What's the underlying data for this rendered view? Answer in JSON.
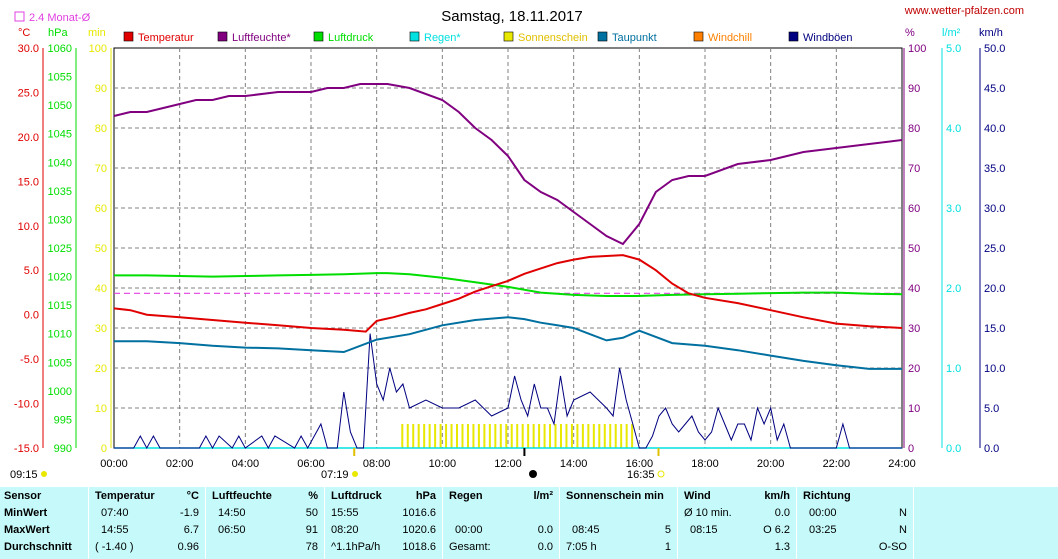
{
  "header": {
    "title": "Samstag, 18.11.2017",
    "site": "www.wetter-pfalzen.com",
    "avg_legend": "2.4 Monat-Ø"
  },
  "axes": {
    "temp_unit": "°C",
    "pressure_unit": "hPa",
    "minutes_unit": "min",
    "percent_unit": "%",
    "rain_unit": "l/m²",
    "wind_unit": "km/h",
    "temp_ticks": [
      "30.0",
      "25.0",
      "20.0",
      "15.0",
      "10.0",
      "5.0",
      "0.0",
      "-5.0",
      "-10.0",
      "-15.0"
    ],
    "pressure_ticks": [
      "1060",
      "1055",
      "1050",
      "1045",
      "1040",
      "1035",
      "1030",
      "1025",
      "1020",
      "1015",
      "1010",
      "1005",
      "1000",
      "995",
      "990"
    ],
    "minutes_ticks": [
      "100",
      "90",
      "80",
      "70",
      "60",
      "50",
      "40",
      "30",
      "20",
      "10",
      "0"
    ],
    "percent_ticks": [
      "100",
      "90",
      "80",
      "70",
      "60",
      "50",
      "40",
      "30",
      "20",
      "10",
      "0"
    ],
    "rain_ticks": [
      "5.0",
      "4.0",
      "3.0",
      "2.0",
      "1.0",
      "0.0"
    ],
    "wind_ticks": [
      "50.0",
      "45.0",
      "40.0",
      "35.0",
      "30.0",
      "25.0",
      "20.0",
      "15.0",
      "10.0",
      "5.0",
      "0.0"
    ],
    "time_ticks": [
      "00:00",
      "02:00",
      "04:00",
      "06:00",
      "08:00",
      "10:00",
      "12:00",
      "14:00",
      "16:00",
      "18:00",
      "20:00",
      "22:00",
      "24:00"
    ]
  },
  "sun": {
    "moon_time": "09:15",
    "sunrise": "07:19",
    "sunset": "16:35"
  },
  "colors": {
    "temperature": "#e00000",
    "humidity": "#800080",
    "pressure": "#00dd00",
    "rain": "#00e0e0",
    "sunshine": "#e8e800",
    "dewpoint": "#0070a0",
    "windchill": "#ff8000",
    "gusts": "#000080",
    "avg_line": "#e040e0",
    "stats_bg": "#c6fafa"
  },
  "chart_data": {
    "type": "line",
    "title": "Samstag, 18.11.2017",
    "x_unit": "hours",
    "xlim": [
      0,
      24
    ],
    "legend_position": "top",
    "grid": true,
    "monthly_avg_temperature": 2.4,
    "series": [
      {
        "name": "Temperatur",
        "axis": "°C",
        "ylim": [
          -15,
          30
        ],
        "x": [
          0,
          0.5,
          1,
          2,
          3,
          4,
          5,
          6,
          7,
          7.67,
          8,
          8.5,
          9,
          9.5,
          10,
          10.5,
          11,
          11.5,
          12,
          12.5,
          13,
          13.5,
          14,
          14.5,
          15,
          15.5,
          16,
          16.5,
          17,
          17.5,
          18,
          19,
          20,
          21,
          22,
          23,
          24
        ],
        "values": [
          0.7,
          0.5,
          0.0,
          -0.3,
          -0.6,
          -0.9,
          -1.2,
          -1.5,
          -1.7,
          -1.9,
          -0.7,
          -0.3,
          0.2,
          0.6,
          1.2,
          1.8,
          2.6,
          3.2,
          3.8,
          4.6,
          5.2,
          5.8,
          6.2,
          6.5,
          6.6,
          6.7,
          6.2,
          5.0,
          3.5,
          2.4,
          1.9,
          1.3,
          0.5,
          -0.3,
          -1.0,
          -1.3,
          -1.5
        ]
      },
      {
        "name": "Luftfeuchte*",
        "axis": "%",
        "ylim": [
          0,
          100
        ],
        "x": [
          0,
          0.5,
          1,
          1.5,
          2,
          2.5,
          3,
          3.5,
          4,
          5,
          6,
          6.5,
          7,
          7.5,
          8,
          8.33,
          9,
          10,
          10.5,
          11,
          11.5,
          12,
          12.5,
          13,
          13.5,
          14,
          14.5,
          15,
          15.5,
          16,
          16.5,
          17,
          17.5,
          18,
          19,
          20,
          21,
          22,
          23,
          24
        ],
        "values": [
          83,
          84,
          84,
          85,
          86,
          87,
          87,
          88,
          88,
          89,
          89,
          90,
          90,
          91,
          91,
          91,
          90,
          87,
          84,
          80,
          77,
          73,
          67,
          64,
          62,
          59,
          56,
          53,
          51,
          56,
          64,
          67,
          68,
          68,
          71,
          72,
          74,
          75,
          76,
          77
        ]
      },
      {
        "name": "Luftdruck",
        "axis": "hPa",
        "ylim": [
          990,
          1060
        ],
        "x": [
          0,
          1,
          2,
          3,
          4,
          5,
          6,
          7,
          8,
          8.33,
          9,
          10,
          11,
          12,
          13,
          14,
          15,
          15.92,
          17,
          18,
          19,
          20,
          21,
          22,
          23,
          24
        ],
        "values": [
          1020.2,
          1020.2,
          1020.1,
          1020.0,
          1020.1,
          1020.2,
          1020.3,
          1020.4,
          1020.6,
          1020.6,
          1020.4,
          1019.8,
          1019.0,
          1018.2,
          1017.2,
          1016.8,
          1016.6,
          1016.6,
          1016.8,
          1016.9,
          1017.0,
          1017.1,
          1017.2,
          1017.2,
          1017.0,
          1016.9
        ]
      },
      {
        "name": "Regen*",
        "axis": "l/m²",
        "ylim": [
          0,
          5
        ],
        "x": [
          0,
          24
        ],
        "values": [
          0.0,
          0.0
        ]
      },
      {
        "name": "Sonnenschein",
        "axis": "min",
        "ylim": [
          0,
          100
        ],
        "x": [
          8.75,
          9.5,
          10.5,
          11.5,
          12.5,
          13.5,
          14.5,
          15.5,
          15.9
        ],
        "values": [
          5,
          5,
          5,
          5,
          5,
          5,
          5,
          5,
          5
        ]
      },
      {
        "name": "Taupunkt",
        "axis": "°C",
        "ylim": [
          -15,
          30
        ],
        "x": [
          0,
          1,
          2,
          3,
          4,
          5,
          6,
          7,
          8,
          9,
          10,
          11,
          12,
          12.5,
          13,
          13.5,
          14,
          14.5,
          15,
          15.5,
          16,
          17,
          18,
          19,
          20,
          21,
          22,
          23,
          24
        ],
        "values": [
          -3.0,
          -3.0,
          -3.2,
          -3.5,
          -3.7,
          -3.8,
          -4.0,
          -4.2,
          -2.8,
          -2.2,
          -1.2,
          -0.6,
          -0.3,
          -0.5,
          -0.9,
          -1.2,
          -1.5,
          -2.2,
          -2.9,
          -2.6,
          -1.8,
          -3.2,
          -3.5,
          -4.0,
          -4.6,
          -5.2,
          -5.7,
          -6.1,
          -6.1
        ]
      },
      {
        "name": "Windchill",
        "axis": "°C",
        "ylim": [
          -15,
          30
        ],
        "x": [],
        "values": []
      },
      {
        "name": "Windböen",
        "axis": "km/h",
        "ylim": [
          0,
          50
        ],
        "x": [
          0,
          0.6,
          0.8,
          1.0,
          1.2,
          1.4,
          2.6,
          2.8,
          3.0,
          3.2,
          3.6,
          3.8,
          4.0,
          4.5,
          4.7,
          4.9,
          5.5,
          5.7,
          5.9,
          6.1,
          6.3,
          6.5,
          6.8,
          7.0,
          7.2,
          7.4,
          7.6,
          7.8,
          8.0,
          8.2,
          8.4,
          8.6,
          8.8,
          9.0,
          9.5,
          10.0,
          10.5,
          11.0,
          11.5,
          12.0,
          12.2,
          12.4,
          12.6,
          12.8,
          13.0,
          13.2,
          13.4,
          13.6,
          13.8,
          14.0,
          14.5,
          15.0,
          15.2,
          15.4,
          15.6,
          15.8,
          16.0,
          16.2,
          16.4,
          16.6,
          16.8,
          17.0,
          17.2,
          17.4,
          17.6,
          17.8,
          18.0,
          18.2,
          18.4,
          18.6,
          18.8,
          19.0,
          19.2,
          19.4,
          19.6,
          19.8,
          20.0,
          20.2,
          20.4,
          20.6,
          20.8,
          21.0,
          21.5,
          21.8,
          22.0,
          22.2,
          22.4,
          24.0
        ],
        "values": [
          0,
          0,
          1.5,
          0,
          1.5,
          0,
          0,
          1.5,
          0,
          1.5,
          0,
          1.5,
          0,
          1.5,
          0,
          1.5,
          0,
          1.5,
          0,
          1.5,
          3,
          0,
          0,
          7,
          2,
          0,
          0,
          14.3,
          8,
          6,
          10,
          7,
          8,
          5,
          6,
          5,
          5,
          6,
          4,
          5,
          9,
          6,
          4,
          8,
          5,
          5,
          3,
          9,
          4,
          6,
          7,
          5,
          4,
          10,
          6,
          3,
          0,
          0,
          1.5,
          4,
          5,
          3,
          2,
          3,
          4,
          2,
          1,
          2,
          5,
          3,
          1,
          3,
          3,
          1,
          5,
          3,
          5,
          1,
          3,
          0,
          0,
          0,
          0,
          0,
          0,
          3,
          0,
          0
        ]
      }
    ]
  },
  "stats": {
    "row_labels": [
      "Sensor",
      "MinWert",
      "MaxWert",
      "Durchschnitt"
    ],
    "temperature": {
      "header": "Temperatur",
      "unit": "°C",
      "min_time": "07:40",
      "min": "-1.9",
      "max_time": "14:55",
      "max": "6.7",
      "avg_a": "( -1.40 )",
      "avg_b": "0.96"
    },
    "humidity": {
      "header": "Luftfeuchte",
      "unit": "%",
      "min_time": "14:50",
      "min": "50",
      "max_time": "06:50",
      "max": "91",
      "avg": "78"
    },
    "pressure": {
      "header": "Luftdruck",
      "unit": "hPa",
      "min_time": "15:55",
      "min": "1016.6",
      "max_time": "08:20",
      "max": "1020.6",
      "trend": "^1.1hPa/h",
      "avg": "1018.6"
    },
    "rain": {
      "header": "Regen",
      "unit": "l/m²",
      "max_time": "00:00",
      "max": "0.0",
      "sum_label": "Gesamt:",
      "sum": "0.0"
    },
    "sunshine": {
      "header": "Sonnenschein min",
      "max_time": "08:45",
      "max": "5",
      "sum": "7:05 h",
      "sum_b": "1"
    },
    "wind": {
      "header": "Wind",
      "unit": "km/h",
      "min_label": "Ø 10 min.",
      "min": "0.0",
      "max_time": "08:15",
      "max": "O 6.2",
      "avg": "1.3"
    },
    "direction": {
      "header": "Richtung",
      "min_time": "00:00",
      "min": "N",
      "max_time": "03:25",
      "max": "N",
      "avg": "O-SO"
    }
  }
}
